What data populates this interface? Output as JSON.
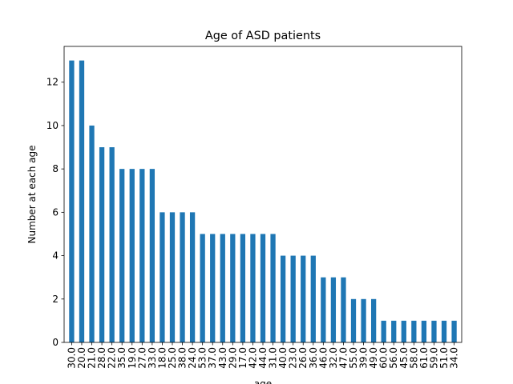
{
  "chart_data": {
    "type": "bar",
    "title": "Age of ASD patients",
    "xlabel": "age",
    "ylabel": "Number at each age",
    "categories": [
      "30.0",
      "20.0",
      "21.0",
      "28.0",
      "22.0",
      "35.0",
      "19.0",
      "27.0",
      "33.0",
      "18.0",
      "25.0",
      "38.0",
      "24.0",
      "53.0",
      "37.0",
      "43.0",
      "29.0",
      "17.0",
      "42.0",
      "44.0",
      "31.0",
      "40.0",
      "23.0",
      "26.0",
      "36.0",
      "46.0",
      "32.0",
      "47.0",
      "55.0",
      "39.0",
      "49.0",
      "60.0",
      "56.0",
      "45.0",
      "58.0",
      "61.0",
      "59.0",
      "51.0",
      "34.0"
    ],
    "values": [
      13,
      13,
      10,
      9,
      9,
      8,
      8,
      8,
      8,
      6,
      6,
      6,
      6,
      5,
      5,
      5,
      5,
      5,
      5,
      5,
      5,
      4,
      4,
      4,
      4,
      3,
      3,
      3,
      2,
      2,
      2,
      1,
      1,
      1,
      1,
      1,
      1,
      1,
      1
    ],
    "ylim": [
      0,
      13.65
    ],
    "yticks": [
      0,
      2,
      4,
      6,
      8,
      10,
      12
    ],
    "ytick_labels": [
      "0",
      "2",
      "4",
      "6",
      "8",
      "10",
      "12"
    ],
    "bar_color": "#1f77b4",
    "grid": false,
    "legend": "none"
  }
}
